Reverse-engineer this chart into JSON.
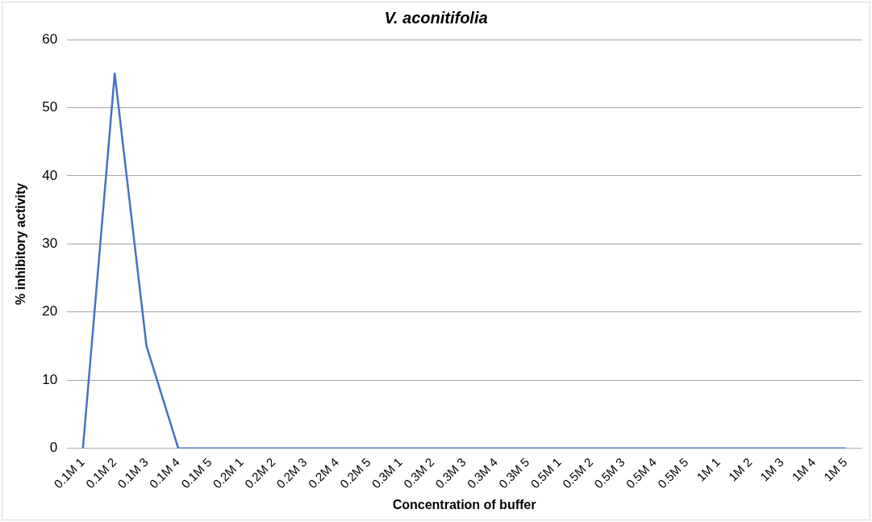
{
  "chart_data": {
    "type": "line",
    "title": "V. aconitifolia",
    "xlabel": "Concentration of buffer",
    "ylabel": "% inhibitory activity",
    "categories": [
      "0.1M 1",
      "0.1M 2",
      "0.1M 3",
      "0.1M 4",
      "0.1M 5",
      "0.2M 1",
      "0.2M 2",
      "0.2M 3",
      "0.2M 4",
      "0.2M 5",
      "0.3M 1",
      "0.3M 2",
      "0.3M 3",
      "0.3M 4",
      "0.3M 5",
      "0.5M 1",
      "0.5M 2",
      "0.5M 3",
      "0.5M 4",
      "0.5M 5",
      "1M 1",
      "1M 2",
      "1M 3",
      "1M 4",
      "1M 5"
    ],
    "series": [
      {
        "color": "#4472c4",
        "values": [
          0,
          55,
          15,
          0,
          0,
          0,
          0,
          0,
          0,
          0,
          0,
          0,
          0,
          0,
          0,
          0,
          0,
          0,
          0,
          0,
          0,
          0,
          0,
          0,
          0
        ]
      }
    ],
    "ylim": [
      0,
      60
    ],
    "yticks": [
      0,
      10,
      20,
      30,
      40,
      50,
      60
    ],
    "grid": "y",
    "legend": false,
    "marker": "none",
    "line_style": "solid"
  }
}
